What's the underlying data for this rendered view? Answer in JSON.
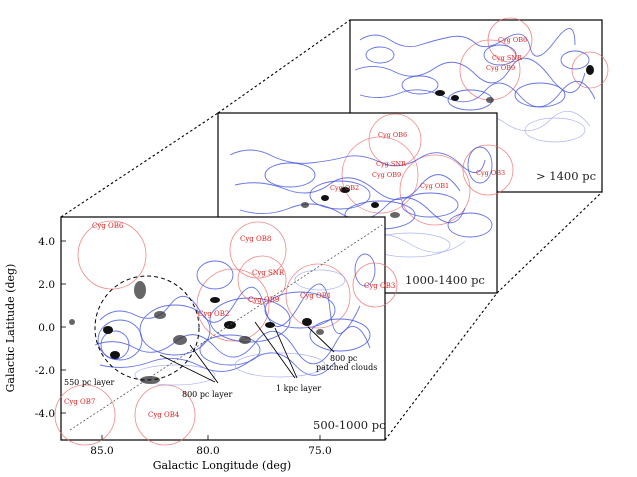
{
  "figure": {
    "panels": [
      {
        "id": "far",
        "label": "> 1400 pc"
      },
      {
        "id": "mid",
        "label": "1000-1400 pc"
      },
      {
        "id": "near",
        "label": "500-1000 pc"
      }
    ],
    "xaxis": {
      "title": "Galactic Longitude (deg)",
      "ticks": [
        "85.0",
        "80.0",
        "75.0"
      ]
    },
    "yaxis": {
      "title": "Galactic Latitude (deg)",
      "ticks": [
        "4.0",
        "2.0",
        "0.0",
        "-2.0",
        "-4.0"
      ]
    },
    "associations": {
      "near": [
        "Cyg OB6",
        "Cyg OB8",
        "Cyg SNR",
        "Cyg OB9",
        "Cyg OB1",
        "Cyg OB3",
        "Cyg OB2",
        "Cyg OB7",
        "Cyg OB4"
      ],
      "mid": [
        "Cyg OB6",
        "Cyg SNR",
        "Cyg OB9",
        "Cyg OB2",
        "Cyg OB1",
        "Cyg OB3"
      ],
      "far": [
        "Cyg OB6",
        "Cyg SNR",
        "Cyg OB9"
      ]
    },
    "annotations": {
      "layer_550": "550 pc layer",
      "layer_800": "800 pc layer",
      "layer_1kpc": "1 kpc layer",
      "patched_1": "800 pc",
      "patched_2": "patched clouds"
    }
  }
}
